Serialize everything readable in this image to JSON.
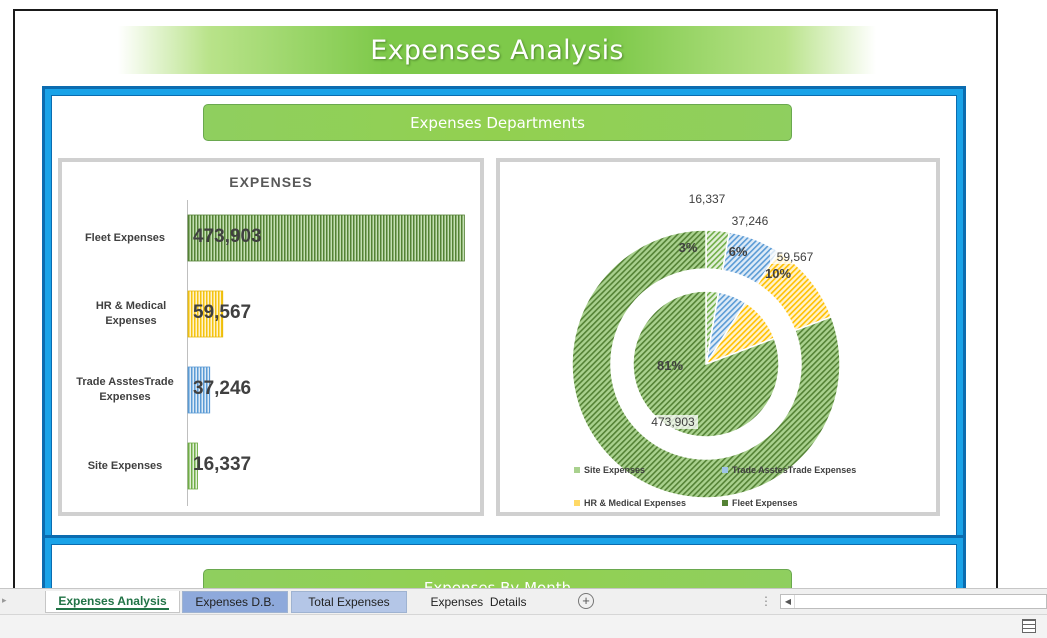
{
  "title": "Expenses Analysis",
  "sections": {
    "departments_header": "Expenses Departments",
    "month_header": "Expenses By Month"
  },
  "colors": {
    "fleet": "#548235",
    "hr_medical": "#ffd966",
    "trade_asstes": "#9dc3e6",
    "site": "#a9d18e",
    "header_green": "#92d050",
    "frame_blue": "#1aa3e8",
    "active_tab": "#217346"
  },
  "chart_data": [
    {
      "type": "bar",
      "title": "EXPENSES",
      "categories": [
        "Fleet Expenses",
        "HR & Medical Expenses",
        "Trade AsstesTrade Expenses",
        "Site Expenses"
      ],
      "values": [
        473903,
        59567,
        37246,
        16337
      ],
      "value_labels": [
        "473,903",
        "59,567",
        "37,246",
        "16,337"
      ],
      "orientation": "horizontal",
      "xlim": [
        0,
        480000
      ],
      "grid": false
    },
    {
      "type": "pie",
      "variant": "doughnut over pie",
      "categories": [
        "Site Expenses",
        "Trade AsstesTrade Expenses",
        "HR & Medical Expenses",
        "Fleet Expenses"
      ],
      "values": [
        16337,
        37246,
        59567,
        473903
      ],
      "value_labels": [
        "16,337",
        "37,246",
        "59,567",
        "473,903"
      ],
      "percent_labels": [
        "3%",
        "6%",
        "10%",
        "81%"
      ],
      "legend_position": "bottom"
    }
  ],
  "tabs": [
    {
      "label": "Expenses Analysis",
      "active": true
    },
    {
      "label": "Expenses D.B.",
      "active": false
    },
    {
      "label": "Total Expenses",
      "active": false
    },
    {
      "label": "Expenses  Details",
      "active": false
    }
  ],
  "icons": {
    "add_sheet": "plus-circle-icon",
    "nav_left": "triangle-left-icon",
    "scroll_left": "scroll-left-icon",
    "normal_view": "grid-view-icon"
  }
}
